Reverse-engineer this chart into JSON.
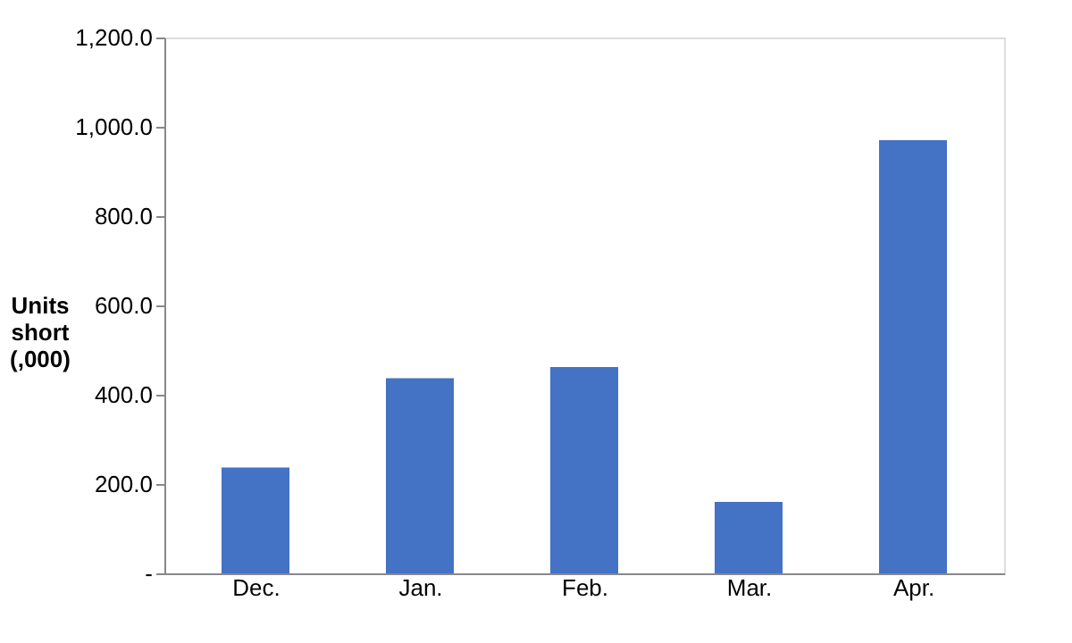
{
  "chart_data": {
    "type": "bar",
    "categories": [
      "Dec.",
      "Jan.",
      "Feb.",
      "Mar.",
      "Apr."
    ],
    "values": [
      237,
      437,
      462,
      160,
      970
    ],
    "color": "#4472c4",
    "ylabel": "Units short (,000)",
    "ylim": [
      0,
      1200
    ],
    "yticks": [
      {
        "value": 0,
        "label": "-"
      },
      {
        "value": 200,
        "label": "200.0"
      },
      {
        "value": 400,
        "label": "400.0"
      },
      {
        "value": 600,
        "label": "600.0"
      },
      {
        "value": 800,
        "label": "800.0"
      },
      {
        "value": 1000,
        "label": "1,000.0"
      },
      {
        "value": 1200,
        "label": "1,200.0"
      }
    ],
    "grid": false
  }
}
